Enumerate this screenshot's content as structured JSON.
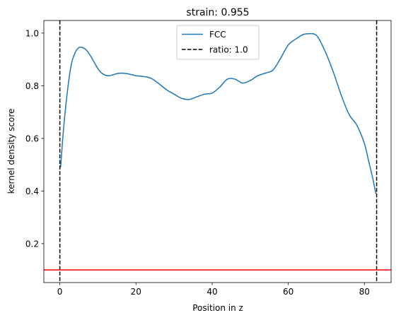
{
  "chart_data": {
    "type": "line",
    "title": "strain: 0.955",
    "xlabel": "Position in z",
    "ylabel": "kernel density score",
    "xlim": [
      -4.2,
      87.0
    ],
    "ylim": [
      0.052,
      1.048
    ],
    "xticks": [
      0,
      20,
      40,
      60,
      80
    ],
    "yticks": [
      0.2,
      0.4,
      0.6,
      0.8,
      1.0
    ],
    "xtick_labels": [
      "0",
      "20",
      "40",
      "60",
      "80"
    ],
    "ytick_labels": [
      "0.2",
      "0.4",
      "0.6",
      "0.8",
      "1.0"
    ],
    "grid": false,
    "legend_position": "upper center",
    "series": [
      {
        "name": "FCC",
        "color": "#1f77b4",
        "style": "solid",
        "x": [
          0.2,
          1.0,
          2.0,
          3.0,
          4.0,
          5.0,
          6.0,
          7.0,
          8.0,
          9.0,
          10.0,
          11.0,
          12.0,
          13.0,
          14.0,
          15.0,
          16.0,
          17.0,
          18.0,
          20.0,
          22.0,
          24.0,
          26.0,
          28.0,
          30.0,
          32.0,
          34.0,
          36.0,
          38.0,
          40.0,
          42.0,
          44.0,
          46.0,
          48.0,
          50.0,
          52.0,
          54.0,
          56.0,
          58.0,
          60.0,
          62.0,
          64.0,
          66.0,
          67.0,
          68.0,
          70.0,
          72.0,
          74.0,
          76.0,
          78.0,
          80.0,
          81.0,
          82.0,
          83.0
        ],
        "y": [
          0.49,
          0.64,
          0.78,
          0.88,
          0.925,
          0.945,
          0.945,
          0.935,
          0.915,
          0.89,
          0.865,
          0.848,
          0.84,
          0.838,
          0.842,
          0.846,
          0.848,
          0.847,
          0.845,
          0.838,
          0.835,
          0.828,
          0.808,
          0.785,
          0.768,
          0.752,
          0.748,
          0.758,
          0.768,
          0.772,
          0.795,
          0.825,
          0.825,
          0.81,
          0.82,
          0.838,
          0.848,
          0.86,
          0.905,
          0.955,
          0.978,
          0.995,
          0.998,
          0.995,
          0.98,
          0.92,
          0.845,
          0.76,
          0.69,
          0.65,
          0.58,
          0.52,
          0.46,
          0.39
        ]
      }
    ],
    "vlines": [
      {
        "name": "ratio: 1.0",
        "x": [
          0,
          83.2
        ],
        "color": "#000000",
        "style": "dashed"
      }
    ],
    "hlines": [
      {
        "y": 0.1,
        "color": "#ff0000",
        "style": "solid"
      }
    ]
  }
}
